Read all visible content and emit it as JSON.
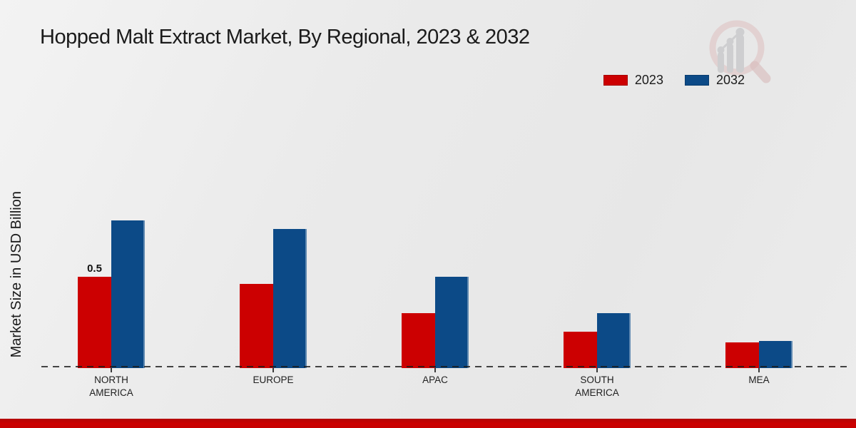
{
  "page": {
    "title": "Hopped Malt Extract Market, By Regional, 2023 & 2032",
    "ylabel": "Market Size in USD Billion",
    "accent_color": "#c40000",
    "background_color": "#ebebeb"
  },
  "legend": {
    "items": [
      {
        "label": "2023",
        "color": "#cc0001"
      },
      {
        "label": "2032",
        "color": "#0c4a87"
      }
    ]
  },
  "chart_data": {
    "type": "bar",
    "title": "Hopped Malt Extract Market, By Regional, 2023 & 2032",
    "xlabel": "",
    "ylabel": "Market Size in USD Billion",
    "categories": [
      "NORTH AMERICA",
      "EUROPE",
      "APAC",
      "SOUTH AMERICA",
      "MEA"
    ],
    "series": [
      {
        "name": "2023",
        "color": "#cc0001",
        "values": [
          0.5,
          0.46,
          0.3,
          0.2,
          0.14
        ]
      },
      {
        "name": "2032",
        "color": "#0c4a87",
        "values": [
          0.81,
          0.76,
          0.5,
          0.3,
          0.15
        ]
      }
    ],
    "data_labels": [
      {
        "series": "2023",
        "category": "NORTH AMERICA",
        "text": "0.5"
      }
    ],
    "unit": "USD Billion",
    "ylim": [
      0,
      1.0
    ],
    "grid": false,
    "y_tick_labels_visible": false,
    "baseline_style": "dashed",
    "legend_position": "top-right"
  }
}
